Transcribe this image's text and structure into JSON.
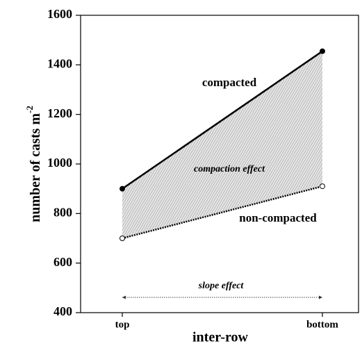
{
  "chart_data": {
    "type": "line",
    "xlabel": "inter-row",
    "ylabel": "number of casts m",
    "ylabel_superscript": "-2",
    "categories": [
      "top",
      "bottom"
    ],
    "series": [
      {
        "name": "compacted",
        "color": "#000000",
        "values": [
          900,
          1455
        ]
      },
      {
        "name": "non-compacted",
        "color": "#000000",
        "values": [
          700,
          910
        ]
      }
    ],
    "ylim": [
      400,
      1600
    ],
    "yticks": [
      400,
      600,
      800,
      1000,
      1200,
      1400,
      1600
    ],
    "annotations": [
      "compaction effect",
      "slope effect"
    ],
    "fill_color": "#c8c8c8"
  }
}
